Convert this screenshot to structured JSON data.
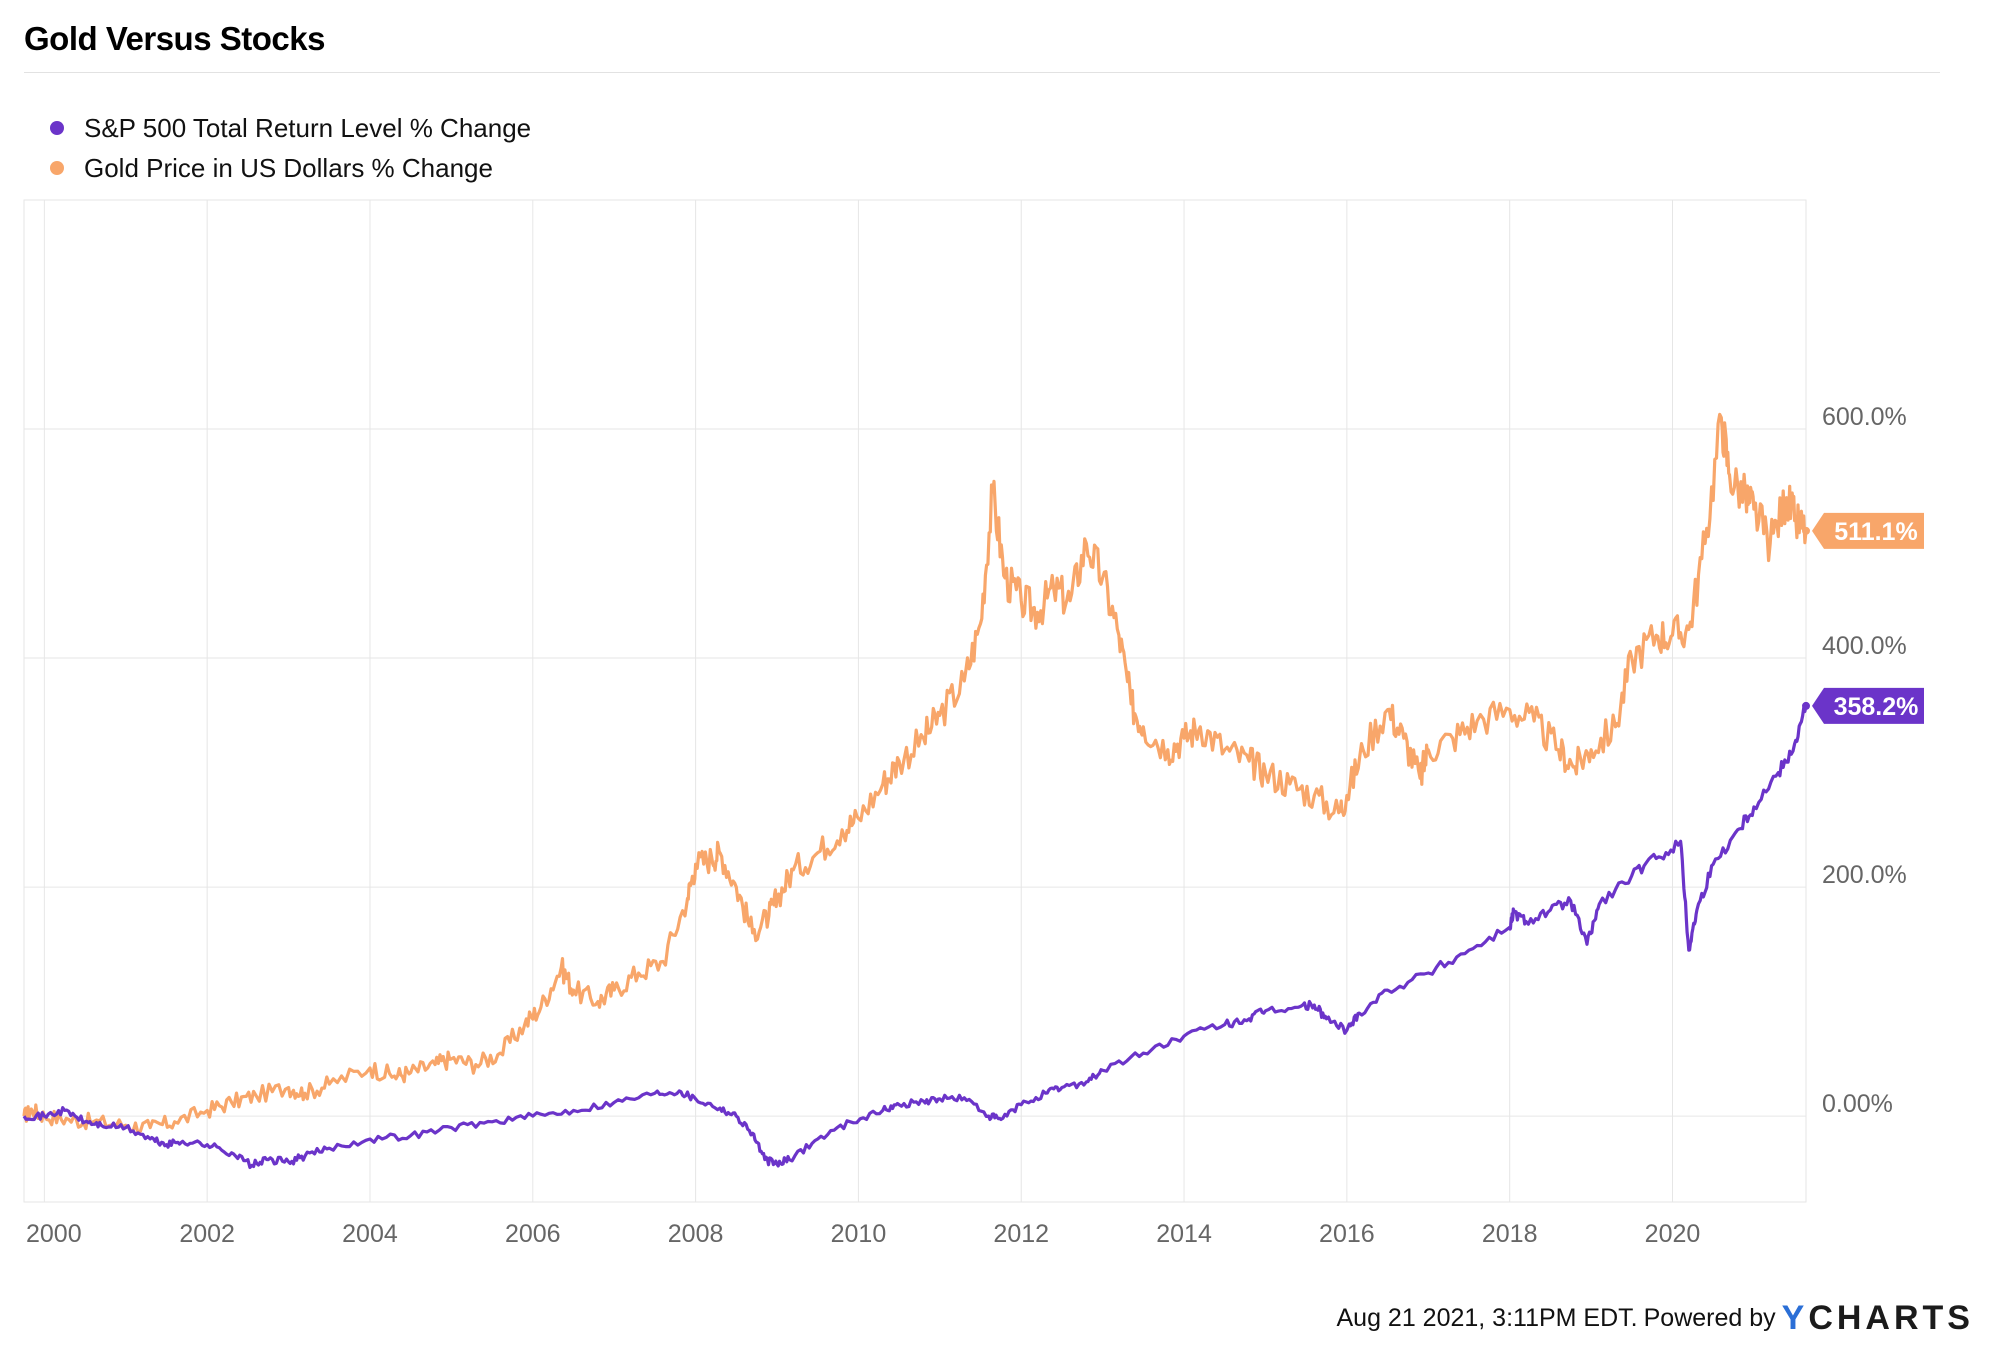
{
  "chart_title": "Gold Versus Stocks",
  "colors": {
    "sp500": "#6b34c9",
    "gold": "#f8a66a",
    "grid": "#e6e6e6",
    "axis_text": "#666666",
    "brand_y": "#2b6fd6"
  },
  "footer": {
    "timestamp": "Aug 21 2021, 3:11PM EDT.",
    "powered_by": "Powered by",
    "brand_y": "Y",
    "brand_rest": "CHARTS"
  },
  "chart_data": {
    "type": "line",
    "title": "Gold Versus Stocks",
    "xlabel": "",
    "ylabel": "",
    "xlim": [
      1999.75,
      2021.64
    ],
    "ylim": [
      -75,
      800
    ],
    "x_ticks": [
      2000,
      2002,
      2004,
      2006,
      2008,
      2010,
      2012,
      2014,
      2016,
      2018,
      2020
    ],
    "x_tick_labels": [
      "2000",
      "2002",
      "2004",
      "2006",
      "2008",
      "2010",
      "2012",
      "2014",
      "2016",
      "2018",
      "2020"
    ],
    "y_ticks": [
      0,
      200,
      400,
      600
    ],
    "y_tick_labels": [
      "0.00%",
      "200.0%",
      "400.0%",
      "600.0%"
    ],
    "legend_position": "top-left",
    "grid": true,
    "series": [
      {
        "name": "S&P 500 Total Return Level % Change",
        "color": "#6b34c9",
        "end_label": "358.2%",
        "x": [
          1999.75,
          2000.0,
          2000.25,
          2000.5,
          2000.7,
          2001.0,
          2001.3,
          2001.5,
          2001.7,
          2002.0,
          2002.3,
          2002.55,
          2002.75,
          2003.0,
          2003.2,
          2003.5,
          2004.0,
          2004.5,
          2005.0,
          2005.5,
          2006.0,
          2006.5,
          2007.0,
          2007.5,
          2007.8,
          2008.0,
          2008.3,
          2008.5,
          2008.7,
          2008.85,
          2009.0,
          2009.15,
          2009.5,
          2009.9,
          2010.3,
          2010.5,
          2010.8,
          2011.0,
          2011.3,
          2011.6,
          2011.75,
          2012.0,
          2012.3,
          2012.5,
          2012.8,
          2013.0,
          2013.5,
          2014.0,
          2014.5,
          2014.8,
          2015.0,
          2015.4,
          2015.6,
          2015.75,
          2016.0,
          2016.15,
          2016.5,
          2017.0,
          2017.5,
          2018.0,
          2018.05,
          2018.2,
          2018.5,
          2018.75,
          2018.95,
          2019.1,
          2019.5,
          2019.8,
          2020.1,
          2020.2,
          2020.3,
          2020.5,
          2020.8,
          2021.0,
          2021.3,
          2021.5,
          2021.64
        ],
        "y": [
          0,
          0,
          5,
          -5,
          -8,
          -10,
          -20,
          -25,
          -22,
          -25,
          -32,
          -43,
          -38,
          -40,
          -35,
          -28,
          -20,
          -17,
          -10,
          -5,
          0,
          5,
          12,
          20,
          22,
          15,
          7,
          0,
          -15,
          -38,
          -42,
          -38,
          -20,
          -5,
          5,
          10,
          13,
          15,
          16,
          0,
          -3,
          10,
          20,
          25,
          30,
          40,
          55,
          70,
          80,
          85,
          92,
          95,
          97,
          85,
          75,
          90,
          110,
          125,
          145,
          165,
          178,
          170,
          180,
          188,
          150,
          185,
          210,
          225,
          240,
          145,
          180,
          220,
          250,
          270,
          300,
          325,
          358.2
        ]
      },
      {
        "name": "Gold Price in US Dollars % Change",
        "color": "#f8a66a",
        "end_label": "511.1%",
        "x": [
          1999.75,
          1999.85,
          2000.0,
          2000.3,
          2000.6,
          2001.0,
          2001.3,
          2001.6,
          2002.0,
          2002.3,
          2002.6,
          2003.0,
          2003.2,
          2003.5,
          2004.0,
          2004.3,
          2004.5,
          2004.8,
          2005.0,
          2005.3,
          2005.6,
          2005.9,
          2006.1,
          2006.35,
          2006.5,
          2006.8,
          2007.0,
          2007.3,
          2007.6,
          2007.9,
          2008.0,
          2008.2,
          2008.3,
          2008.5,
          2008.7,
          2008.9,
          2009.0,
          2009.2,
          2009.5,
          2009.8,
          2010.0,
          2010.3,
          2010.5,
          2010.8,
          2011.0,
          2011.3,
          2011.5,
          2011.65,
          2011.8,
          2012.0,
          2012.2,
          2012.4,
          2012.6,
          2012.8,
          2013.0,
          2013.2,
          2013.35,
          2013.5,
          2013.8,
          2014.0,
          2014.2,
          2014.5,
          2014.8,
          2015.0,
          2015.3,
          2015.6,
          2015.9,
          2016.0,
          2016.2,
          2016.5,
          2016.7,
          2016.9,
          2017.0,
          2017.3,
          2017.6,
          2018.0,
          2018.3,
          2018.6,
          2018.8,
          2019.0,
          2019.3,
          2019.5,
          2019.8,
          2020.0,
          2020.2,
          2020.4,
          2020.6,
          2020.7,
          2020.9,
          2021.0,
          2021.2,
          2021.4,
          2021.5,
          2021.64
        ],
        "y": [
          0,
          5,
          0,
          -3,
          -5,
          -8,
          -10,
          -5,
          5,
          12,
          18,
          25,
          20,
          28,
          42,
          35,
          38,
          45,
          50,
          45,
          55,
          80,
          95,
          130,
          110,
          100,
          110,
          125,
          135,
          190,
          220,
          225,
          230,
          200,
          160,
          175,
          190,
          215,
          230,
          250,
          260,
          290,
          310,
          330,
          350,
          380,
          430,
          545,
          470,
          450,
          440,
          460,
          450,
          500,
          470,
          420,
          360,
          340,
          320,
          330,
          340,
          320,
          310,
          300,
          290,
          280,
          265,
          280,
          320,
          355,
          330,
          295,
          320,
          330,
          345,
          355,
          345,
          320,
          305,
          320,
          340,
          400,
          420,
          420,
          425,
          500,
          610,
          560,
          540,
          530,
          500,
          540,
          520,
          511.1
        ]
      }
    ]
  }
}
